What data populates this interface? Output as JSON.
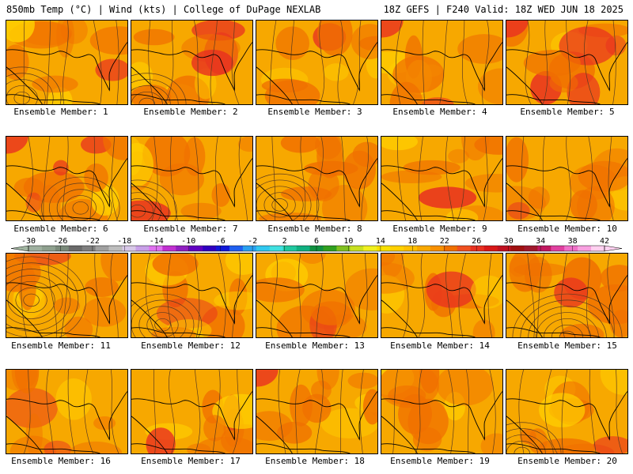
{
  "header": {
    "left_title": "850mb Temp (°C) | Wind (kts) | College of DuPage NEXLAB",
    "right_title": "18Z GEFS | F240 Valid: 18Z WED JUN 18 2025"
  },
  "colorbar": {
    "labels": [
      "-30",
      "-26",
      "-22",
      "-18",
      "-14",
      "-10",
      "-6",
      "-2",
      "2",
      "6",
      "10",
      "14",
      "18",
      "22",
      "26",
      "30",
      "34",
      "38",
      "42"
    ],
    "colors": [
      "#9fb0a0",
      "#8ea08e",
      "#7a8a7a",
      "#6a6a6a",
      "#7f7f7f",
      "#a0a0a0",
      "#bdbdbd",
      "#d8c8e8",
      "#c8a0e8",
      "#e070f0",
      "#c030d0",
      "#9020c0",
      "#6000c0",
      "#3000c0",
      "#1018d8",
      "#2060f0",
      "#2aa0f0",
      "#30c8f0",
      "#40e0e0",
      "#20c8a0",
      "#10b080",
      "#109040",
      "#30a020",
      "#80c020",
      "#c8e020",
      "#f0f020",
      "#f8e000",
      "#ffd000",
      "#ffc000",
      "#f8a800",
      "#f89000",
      "#f07000",
      "#f05020",
      "#e83020",
      "#d81818",
      "#c01020",
      "#a01010",
      "#a0182c",
      "#c01860",
      "#e040a0",
      "#f070c8",
      "#f8a0e0",
      "#ffd0f0"
    ]
  },
  "panels": [
    {
      "label": "Ensemble Member: 1"
    },
    {
      "label": "Ensemble Member: 2"
    },
    {
      "label": "Ensemble Member: 3"
    },
    {
      "label": "Ensemble Member: 4"
    },
    {
      "label": "Ensemble Member: 5"
    },
    {
      "label": "Ensemble Member: 6"
    },
    {
      "label": "Ensemble Member: 7"
    },
    {
      "label": "Ensemble Member: 8"
    },
    {
      "label": "Ensemble Member: 9"
    },
    {
      "label": "Ensemble Member: 10"
    },
    {
      "label": "Ensemble Member: 11"
    },
    {
      "label": "Ensemble Member: 12"
    },
    {
      "label": "Ensemble Member: 13"
    },
    {
      "label": "Ensemble Member: 14"
    },
    {
      "label": "Ensemble Member: 15"
    },
    {
      "label": "Ensemble Member: 16"
    },
    {
      "label": "Ensemble Member: 17"
    },
    {
      "label": "Ensemble Member: 18"
    },
    {
      "label": "Ensemble Member: 19"
    },
    {
      "label": "Ensemble Member: 20"
    }
  ],
  "colors": {
    "base_orange": "#f7a800",
    "warm_orange": "#f07000",
    "hot_red": "#e83020",
    "cool_yellow": "#ffd000",
    "contour_line": "#5a3a20",
    "coastline": "#000000"
  }
}
